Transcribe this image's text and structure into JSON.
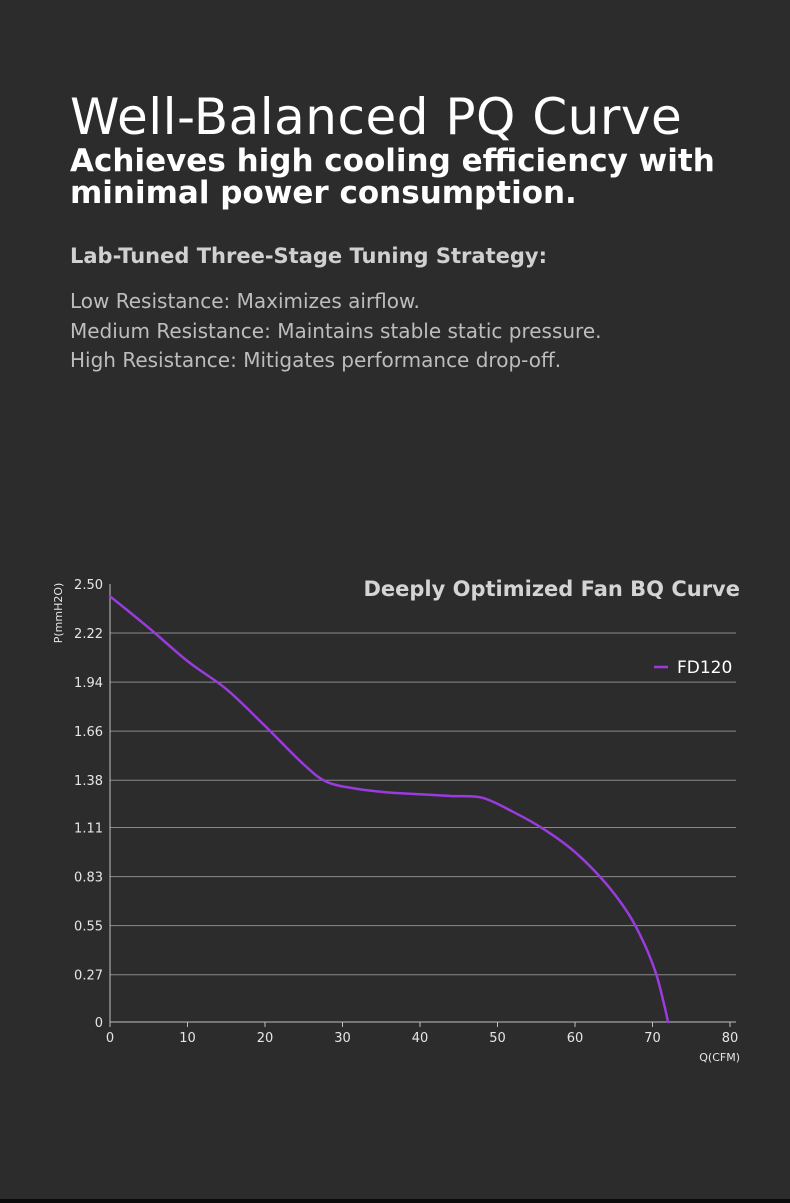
{
  "header": {
    "title": "Well-Balanced PQ Curve",
    "subtitle": "Achieves high cooling efficiency with minimal power consumption."
  },
  "strategy": {
    "heading": "Lab-Tuned Three-Stage Tuning Strategy:",
    "items": [
      "Low Resistance: Maximizes airflow.",
      "Medium Resistance: Maintains stable static pressure.",
      "High Resistance: Mitigates performance drop-off."
    ]
  },
  "colors": {
    "series": "#9a3bde",
    "grid": "#8a8a8a",
    "axis": "#bfbfbf"
  },
  "chart_data": {
    "type": "line",
    "title": "Deeply Optimized Fan BQ Curve",
    "xlabel": "Q(CFM)",
    "ylabel": "P(mmH2O)",
    "xlim": [
      0,
      80
    ],
    "ylim": [
      0,
      2.5
    ],
    "xticks": [
      "0",
      "10",
      "20",
      "30",
      "40",
      "50",
      "60",
      "70",
      "80"
    ],
    "xtick_values": [
      0,
      10,
      20,
      30,
      40,
      50,
      60,
      70,
      80
    ],
    "yticks": [
      "0",
      "0.27",
      "0.55",
      "0.83",
      "1.11",
      "1.38",
      "1.66",
      "1.94",
      "2.22",
      "2.50"
    ],
    "ytick_values": [
      0,
      0.27,
      0.55,
      0.83,
      1.11,
      1.38,
      1.66,
      1.94,
      2.22,
      2.5
    ],
    "legend_position": "top-right",
    "series": [
      {
        "name": "FD120",
        "x": [
          0,
          5,
          10,
          15,
          20,
          25,
          28,
          32,
          36,
          40,
          44,
          48,
          52,
          56,
          60,
          64,
          67,
          69,
          70.5,
          71.5,
          72
        ],
        "y": [
          2.43,
          2.25,
          2.06,
          1.9,
          1.69,
          1.47,
          1.37,
          1.33,
          1.31,
          1.3,
          1.29,
          1.28,
          1.2,
          1.1,
          0.97,
          0.79,
          0.61,
          0.44,
          0.27,
          0.1,
          0
        ]
      }
    ]
  }
}
